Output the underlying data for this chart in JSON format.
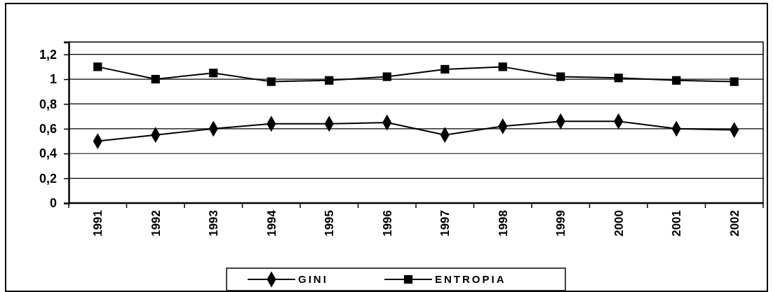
{
  "chart_data": {
    "type": "line",
    "categories": [
      "1991",
      "1992",
      "1993",
      "1994",
      "1995",
      "1996",
      "1997",
      "1998",
      "1999",
      "2000",
      "2001",
      "2002"
    ],
    "series": [
      {
        "name": "GINI",
        "color": "#000000",
        "marker": "diamond",
        "values": [
          0.5,
          0.55,
          0.6,
          0.64,
          0.64,
          0.65,
          0.55,
          0.62,
          0.66,
          0.66,
          0.6,
          0.59
        ]
      },
      {
        "name": "ENTROPIA",
        "color": "#000000",
        "marker": "square",
        "values": [
          1.1,
          1.0,
          1.05,
          0.98,
          0.99,
          1.02,
          1.08,
          1.1,
          1.02,
          1.01,
          0.99,
          0.98
        ]
      }
    ],
    "ylim": [
      0,
      1.3
    ],
    "yticks": [
      {
        "value": 0,
        "label": "0"
      },
      {
        "value": 0.2,
        "label": "0,2"
      },
      {
        "value": 0.4,
        "label": "0,4"
      },
      {
        "value": 0.6,
        "label": "0,6"
      },
      {
        "value": 0.8,
        "label": "0,8"
      },
      {
        "value": 1,
        "label": "1"
      },
      {
        "value": 1.2,
        "label": "1,2"
      }
    ],
    "grid": "y",
    "legend": "bottom",
    "line_style": "solid"
  }
}
